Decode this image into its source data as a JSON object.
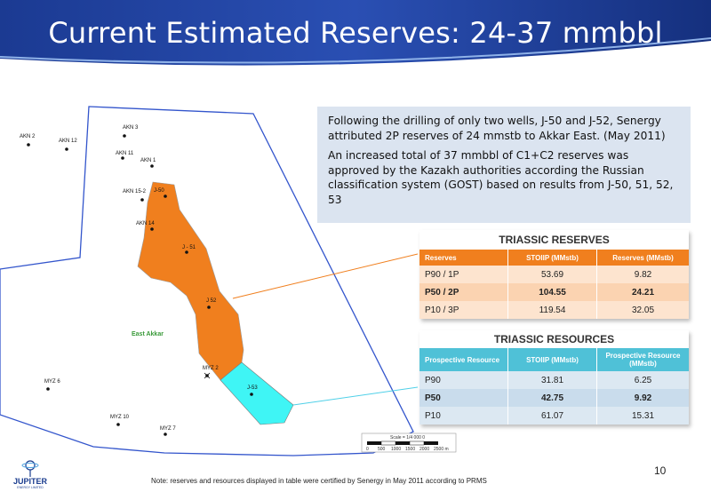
{
  "slide": {
    "title": "Current Estimated Reserves: 24-37 mmbbl",
    "page_number": "10",
    "footnote": "Note: reserves and resources displayed in table were certified by Senergy in May 2011 according to PRMS"
  },
  "textbox": {
    "paragraph1": "Following the drilling of only two wells, J-50 and J-52, Senergy attributed 2P reserves of 24 mmstb to Akkar East. (May 2011)",
    "paragraph2": "An increased total of 37 mmbbl of C1+C2 reserves was approved by the Kazakh authorities according the Russian classification system (GOST) based on results from J-50, 51, 52, 53"
  },
  "reserves_table": {
    "title": "TRIASSIC RESERVES",
    "headers": [
      "Reserves",
      "STOIIP (MMstb)",
      "Reserves (MMstb)"
    ],
    "rows": [
      [
        "P90 / 1P",
        "53.69",
        "9.82"
      ],
      [
        "P50 / 2P",
        "104.55",
        "24.21"
      ],
      [
        "P10 / 3P",
        "119.54",
        "32.05"
      ]
    ]
  },
  "resources_table": {
    "title": "TRIASSIC RESOURCES",
    "headers": [
      "Prospective Resource",
      "STOIIP (MMstb)",
      "Prospective Resource (MMstb)"
    ],
    "rows": [
      [
        "P90",
        "31.81",
        "6.25"
      ],
      [
        "P50",
        "42.75",
        "9.92"
      ],
      [
        "P10",
        "61.07",
        "15.31"
      ]
    ]
  },
  "map": {
    "field_name": "East Akkar",
    "wells": {
      "akn2": "AKN 2",
      "akn12": "AKN 12",
      "akn3": "AKN 3",
      "akn11": "AKN 11",
      "akn1": "AKN 1",
      "akn152": "AKN 15-2",
      "j50": "J-50",
      "akn14": "AKN 14",
      "j51": "J - 51",
      "j52": "J 52",
      "myz2": "MYZ 2",
      "j53": "J-53",
      "myz6": "MYZ 6",
      "myz10": "MYZ 10",
      "myz7": "MYZ 7"
    },
    "scale": {
      "label": "Scale = 1/4 000 0",
      "ticks": [
        "0",
        "500",
        "1000",
        "1500",
        "2000",
        "2500 m"
      ]
    }
  },
  "logo": {
    "name": "JUPITER",
    "tagline": "ENERGY LIMITED"
  },
  "colors": {
    "header_blue": "#1f3f9a",
    "reserves_orange": "#f07f1e",
    "resources_cyan": "#4fc1d7",
    "textbox_bg": "#dbe4f0"
  }
}
